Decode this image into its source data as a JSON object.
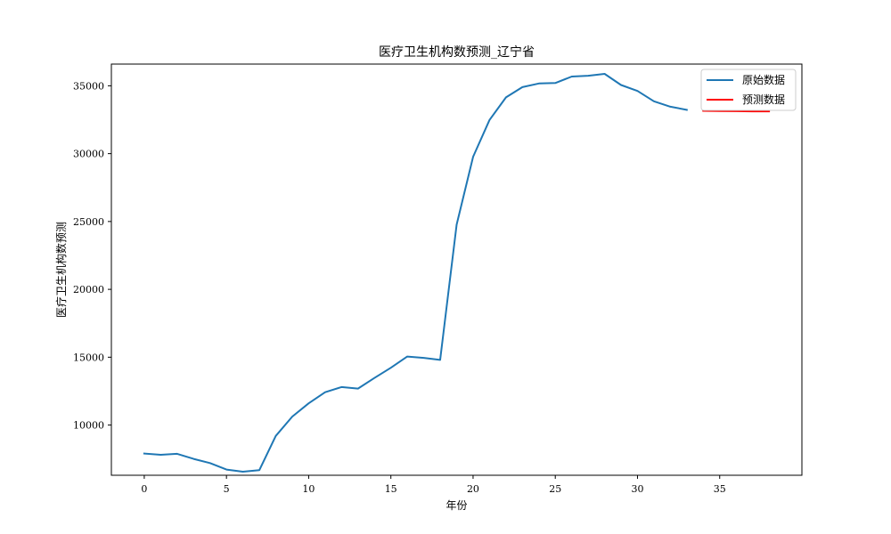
{
  "chart_data": {
    "type": "line",
    "title": "医疗卫生机构数预测_辽宁省",
    "xlabel": "年份",
    "ylabel": "医疗卫生机构数预测",
    "xlim": [
      -2,
      40
    ],
    "ylim": [
      6300,
      36600
    ],
    "xticks": [
      0,
      5,
      10,
      15,
      20,
      25,
      30,
      35
    ],
    "yticks": [
      10000,
      15000,
      20000,
      25000,
      30000,
      35000
    ],
    "legend_position": "top-right",
    "grid": false,
    "series": [
      {
        "name": "原始数据",
        "color": "#1f77b4",
        "x": [
          0,
          1,
          2,
          3,
          4,
          5,
          6,
          7,
          8,
          9,
          10,
          11,
          12,
          13,
          14,
          15,
          16,
          17,
          18,
          19,
          20,
          21,
          22,
          23,
          24,
          25,
          26,
          27,
          28,
          29,
          30,
          31,
          32,
          33
        ],
        "values": [
          7900,
          7810,
          7880,
          7510,
          7200,
          6720,
          6560,
          6680,
          9200,
          10620,
          11600,
          12420,
          12800,
          12690,
          13470,
          14220,
          15050,
          14950,
          14800,
          24770,
          29770,
          32480,
          34150,
          34900,
          35170,
          35200,
          35680,
          35740,
          35880,
          35060,
          34620,
          33860,
          33460,
          33230
        ]
      },
      {
        "name": "预测数据",
        "color": "#ff0000",
        "x": [
          34,
          35,
          36,
          37,
          38
        ],
        "values": [
          33160,
          33140,
          33130,
          33120,
          33120
        ]
      }
    ]
  }
}
